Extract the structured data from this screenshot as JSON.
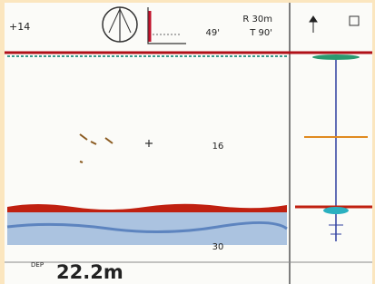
{
  "header": {
    "left_value": "+14",
    "range": "R 30m",
    "bearing": "49'",
    "tilt": "T 90'"
  },
  "echogram": {
    "depth_labels": [
      "16",
      "30"
    ]
  },
  "footer": {
    "label": "DEP",
    "depth": "22.2m"
  }
}
